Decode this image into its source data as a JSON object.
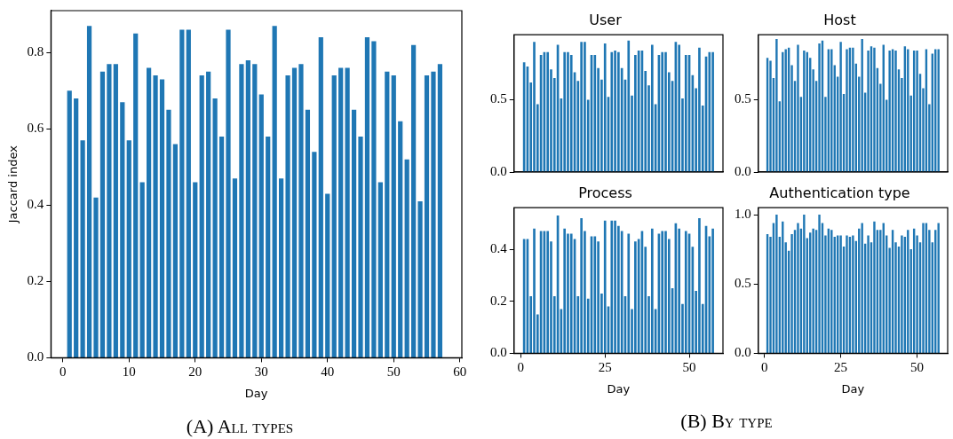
{
  "chart_data": [
    {
      "type": "bar",
      "xlabel": "Day",
      "ylabel": "Jaccard index",
      "color": "#1f77b4",
      "grid": false,
      "x": [
        1,
        2,
        3,
        4,
        5,
        6,
        7,
        8,
        9,
        10,
        11,
        12,
        13,
        14,
        15,
        16,
        17,
        18,
        19,
        20,
        21,
        22,
        23,
        24,
        25,
        26,
        27,
        28,
        29,
        30,
        31,
        32,
        33,
        34,
        35,
        36,
        37,
        38,
        39,
        40,
        41,
        42,
        43,
        44,
        45,
        46,
        47,
        48,
        49,
        50,
        51,
        52,
        53,
        54,
        55,
        56,
        57
      ],
      "values": [
        0.7,
        0.68,
        0.57,
        0.87,
        0.42,
        0.75,
        0.77,
        0.77,
        0.67,
        0.57,
        0.85,
        0.46,
        0.76,
        0.74,
        0.73,
        0.65,
        0.56,
        0.86,
        0.86,
        0.46,
        0.74,
        0.75,
        0.68,
        0.58,
        0.86,
        0.47,
        0.77,
        0.78,
        0.77,
        0.69,
        0.58,
        0.87,
        0.47,
        0.74,
        0.76,
        0.77,
        0.65,
        0.54,
        0.84,
        0.43,
        0.74,
        0.76,
        0.76,
        0.65,
        0.58,
        0.84,
        0.83,
        0.46,
        0.75,
        0.74,
        0.62,
        0.52,
        0.82,
        0.41,
        0.74,
        0.75,
        0.77
      ],
      "xlim": [
        -1.8,
        60.3
      ],
      "xticks": [
        0,
        10,
        20,
        30,
        40,
        50,
        60
      ],
      "ylim": [
        0,
        0.91
      ],
      "yticks": [
        {
          "value": 0,
          "label": "0.0"
        },
        {
          "value": 0.2,
          "label": "0.2"
        },
        {
          "value": 0.4,
          "label": "0.4"
        },
        {
          "value": 0.6,
          "label": "0.6"
        },
        {
          "value": 0.8,
          "label": "0.8"
        }
      ],
      "annotations": [
        "(A) All types"
      ]
    },
    {
      "type": "bar",
      "title": "User",
      "color": "#1f77b4",
      "grid": false,
      "tick_labels": "y",
      "x": [
        1,
        2,
        3,
        4,
        5,
        6,
        7,
        8,
        9,
        10,
        11,
        12,
        13,
        14,
        15,
        16,
        17,
        18,
        19,
        20,
        21,
        22,
        23,
        24,
        25,
        26,
        27,
        28,
        29,
        30,
        31,
        32,
        33,
        34,
        35,
        36,
        37,
        38,
        39,
        40,
        41,
        42,
        43,
        44,
        45,
        46,
        47,
        48,
        49,
        50,
        51,
        52,
        53,
        54,
        55,
        56,
        57
      ],
      "values": [
        0.76,
        0.73,
        0.62,
        0.9,
        0.47,
        0.81,
        0.83,
        0.83,
        0.71,
        0.65,
        0.88,
        0.51,
        0.83,
        0.83,
        0.81,
        0.69,
        0.63,
        0.9,
        0.9,
        0.5,
        0.81,
        0.81,
        0.72,
        0.64,
        0.89,
        0.52,
        0.83,
        0.84,
        0.83,
        0.72,
        0.64,
        0.91,
        0.53,
        0.81,
        0.84,
        0.84,
        0.7,
        0.6,
        0.88,
        0.47,
        0.81,
        0.83,
        0.83,
        0.69,
        0.63,
        0.9,
        0.88,
        0.51,
        0.81,
        0.81,
        0.67,
        0.58,
        0.86,
        0.46,
        0.8,
        0.83,
        0.83
      ],
      "xlim": [
        -2,
        60
      ],
      "xticks": [
        0,
        25,
        50
      ],
      "ylim": [
        0,
        0.95
      ],
      "yticks": [
        {
          "value": 0,
          "label": "0.0"
        },
        {
          "value": 0.5,
          "label": "0.5"
        }
      ]
    },
    {
      "type": "bar",
      "title": "Host",
      "color": "#1f77b4",
      "grid": false,
      "tick_labels": "y",
      "x": [
        1,
        2,
        3,
        4,
        5,
        6,
        7,
        8,
        9,
        10,
        11,
        12,
        13,
        14,
        15,
        16,
        17,
        18,
        19,
        20,
        21,
        22,
        23,
        24,
        25,
        26,
        27,
        28,
        29,
        30,
        31,
        32,
        33,
        34,
        35,
        36,
        37,
        38,
        39,
        40,
        41,
        42,
        43,
        44,
        45,
        46,
        47,
        48,
        49,
        50,
        51,
        52,
        53,
        54,
        55,
        56,
        57
      ],
      "values": [
        0.79,
        0.77,
        0.65,
        0.92,
        0.49,
        0.83,
        0.85,
        0.86,
        0.74,
        0.63,
        0.88,
        0.52,
        0.84,
        0.83,
        0.79,
        0.71,
        0.63,
        0.89,
        0.91,
        0.52,
        0.85,
        0.85,
        0.74,
        0.66,
        0.9,
        0.54,
        0.85,
        0.86,
        0.86,
        0.75,
        0.66,
        0.92,
        0.55,
        0.84,
        0.87,
        0.86,
        0.72,
        0.61,
        0.88,
        0.5,
        0.84,
        0.85,
        0.84,
        0.71,
        0.65,
        0.87,
        0.85,
        0.53,
        0.84,
        0.84,
        0.68,
        0.58,
        0.85,
        0.47,
        0.82,
        0.85,
        0.85
      ],
      "xlim": [
        -2,
        60
      ],
      "xticks": [
        0,
        25,
        50
      ],
      "ylim": [
        0,
        0.95
      ],
      "yticks": [
        {
          "value": 0,
          "label": "0.0"
        },
        {
          "value": 0.5,
          "label": "0.5"
        }
      ]
    },
    {
      "type": "bar",
      "title": "Process",
      "xlabel": "Day",
      "color": "#1f77b4",
      "grid": false,
      "x": [
        1,
        2,
        3,
        4,
        5,
        6,
        7,
        8,
        9,
        10,
        11,
        12,
        13,
        14,
        15,
        16,
        17,
        18,
        19,
        20,
        21,
        22,
        23,
        24,
        25,
        26,
        27,
        28,
        29,
        30,
        31,
        32,
        33,
        34,
        35,
        36,
        37,
        38,
        39,
        40,
        41,
        42,
        43,
        44,
        45,
        46,
        47,
        48,
        49,
        50,
        51,
        52,
        53,
        54,
        55,
        56,
        57
      ],
      "values": [
        0.44,
        0.44,
        0.22,
        0.48,
        0.15,
        0.47,
        0.47,
        0.47,
        0.43,
        0.22,
        0.53,
        0.17,
        0.48,
        0.46,
        0.46,
        0.44,
        0.22,
        0.52,
        0.47,
        0.21,
        0.45,
        0.45,
        0.43,
        0.23,
        0.51,
        0.18,
        0.51,
        0.51,
        0.49,
        0.47,
        0.22,
        0.46,
        0.17,
        0.43,
        0.44,
        0.47,
        0.41,
        0.22,
        0.48,
        0.17,
        0.46,
        0.47,
        0.47,
        0.44,
        0.25,
        0.5,
        0.48,
        0.19,
        0.47,
        0.46,
        0.41,
        0.24,
        0.52,
        0.19,
        0.49,
        0.45,
        0.48
      ],
      "xlim": [
        -2,
        60
      ],
      "xticks": [
        0,
        25,
        50
      ],
      "ylim": [
        0,
        0.56
      ],
      "yticks": [
        {
          "value": 0,
          "label": "0.0"
        },
        {
          "value": 0.2,
          "label": "0.2"
        },
        {
          "value": 0.4,
          "label": "0.4"
        }
      ],
      "annotations": [
        "(B) By type"
      ]
    },
    {
      "type": "bar",
      "title": "Authentication type",
      "xlabel": "Day",
      "color": "#1f77b4",
      "grid": false,
      "x": [
        1,
        2,
        3,
        4,
        5,
        6,
        7,
        8,
        9,
        10,
        11,
        12,
        13,
        14,
        15,
        16,
        17,
        18,
        19,
        20,
        21,
        22,
        23,
        24,
        25,
        26,
        27,
        28,
        29,
        30,
        31,
        32,
        33,
        34,
        35,
        36,
        37,
        38,
        39,
        40,
        41,
        42,
        43,
        44,
        45,
        46,
        47,
        48,
        49,
        50,
        51,
        52,
        53,
        54,
        55,
        56,
        57
      ],
      "values": [
        0.86,
        0.84,
        0.94,
        1.0,
        0.84,
        0.95,
        0.8,
        0.74,
        0.86,
        0.89,
        0.94,
        0.9,
        1.0,
        0.83,
        0.87,
        0.9,
        0.89,
        1.0,
        0.94,
        0.85,
        0.9,
        0.89,
        0.84,
        0.85,
        0.85,
        0.77,
        0.85,
        0.84,
        0.85,
        0.81,
        0.9,
        0.94,
        0.79,
        0.85,
        0.8,
        0.95,
        0.89,
        0.89,
        0.94,
        0.85,
        0.76,
        0.89,
        0.8,
        0.77,
        0.85,
        0.84,
        0.89,
        0.75,
        0.9,
        0.85,
        0.8,
        0.94,
        0.94,
        0.89,
        0.8,
        0.89,
        0.94
      ],
      "xlim": [
        -2,
        60
      ],
      "xticks": [
        0,
        25,
        50
      ],
      "ylim": [
        0,
        1.05
      ],
      "yticks": [
        {
          "value": 0,
          "label": "0.0"
        },
        {
          "value": 0.5,
          "label": "0.5"
        },
        {
          "value": 1,
          "label": "1.0"
        }
      ]
    }
  ]
}
